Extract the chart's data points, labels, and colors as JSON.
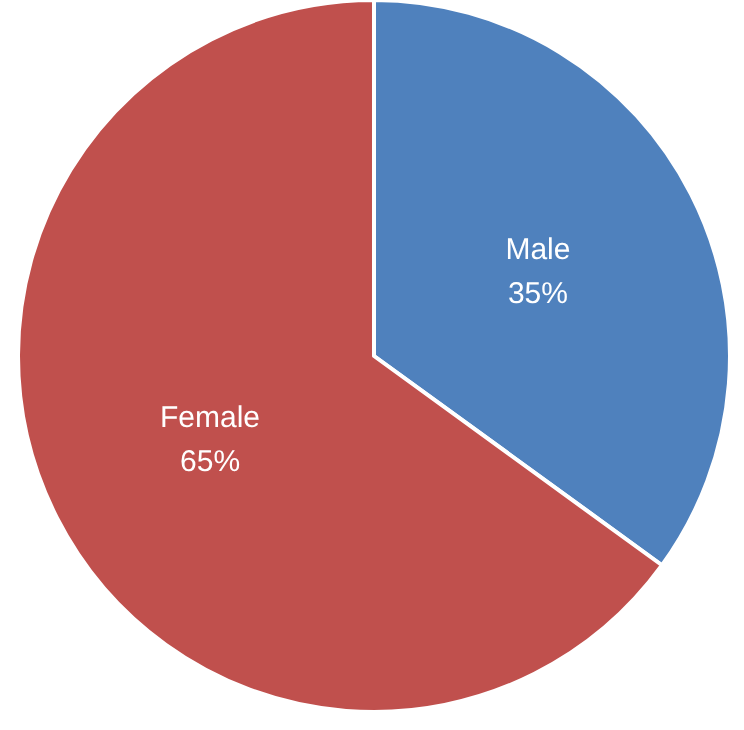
{
  "chart_data": {
    "type": "pie",
    "categories": [
      "Male",
      "Female"
    ],
    "values": [
      35,
      65
    ],
    "colors": [
      "#4f81bd",
      "#c0504d"
    ],
    "value_labels": [
      "35%",
      "65%"
    ],
    "legend": false
  }
}
